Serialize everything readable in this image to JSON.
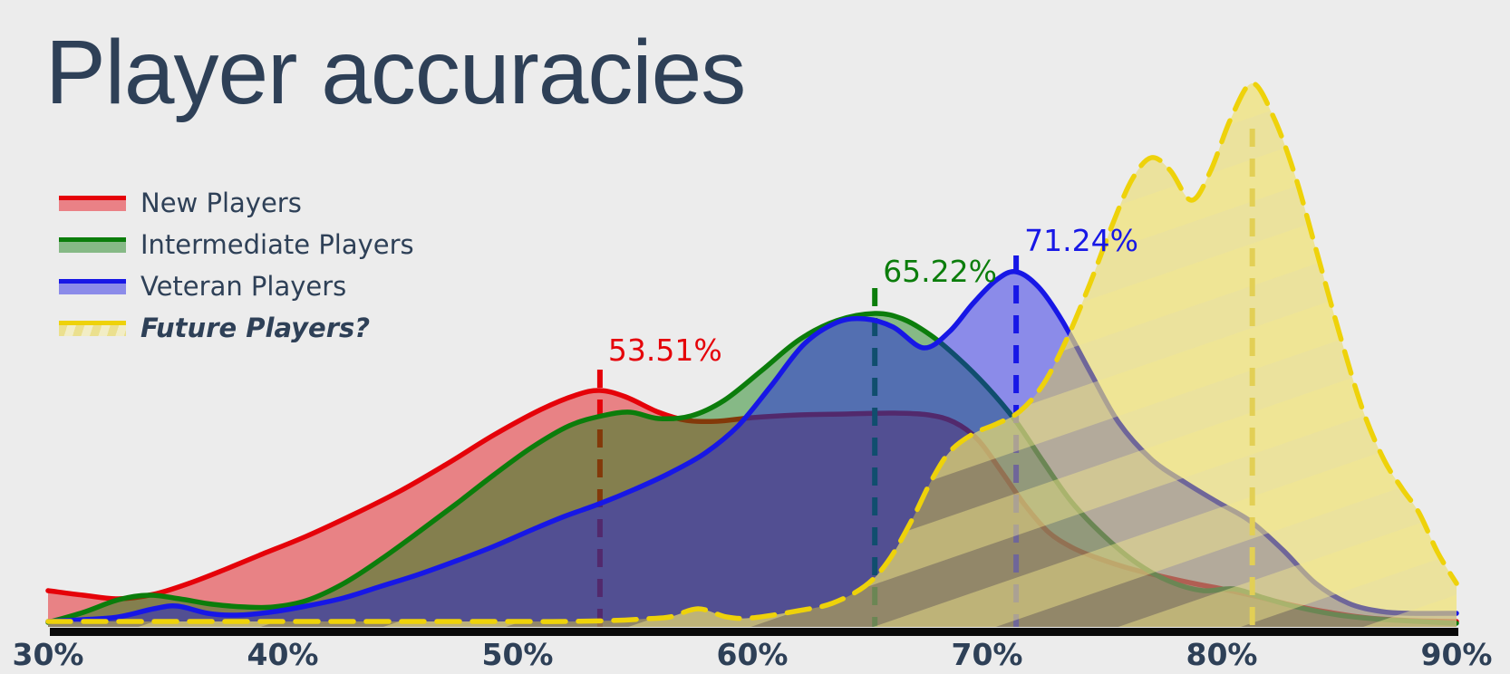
{
  "page": {
    "title": "Player accuracies",
    "background_color": "#ececec",
    "text_color": "#2e4057",
    "axis_bar_color": "#0a0a0a"
  },
  "legend": {
    "items": [
      {
        "label": "New Players",
        "stroke": "#e50209",
        "fill": "rgba(232,0,11,0.45)",
        "italic": false,
        "hatched": false
      },
      {
        "label": "Intermediate Players",
        "stroke": "#0b7d0b",
        "fill": "rgba(11,125,11,0.45)",
        "italic": false,
        "hatched": false
      },
      {
        "label": "Veteran Players",
        "stroke": "#1717e6",
        "fill": "rgba(23,23,230,0.45)",
        "italic": false,
        "hatched": false
      },
      {
        "label": "Future Players?",
        "stroke": "#eed20a",
        "fill": "rgba(234,211,48,0.42)",
        "italic": true,
        "hatched": true
      }
    ]
  },
  "chart_data": {
    "type": "area",
    "subtype": "kde-density-curves",
    "title": "Player accuracies",
    "xlabel": "",
    "ylabel": "",
    "x_unit": "%",
    "xlim": [
      30,
      90
    ],
    "x_ticks": [
      30,
      40,
      50,
      60,
      70,
      80,
      90
    ],
    "x_tick_labels": [
      "30%",
      "40%",
      "50%",
      "60%",
      "70%",
      "80%",
      "90%"
    ],
    "y_axis_shown": false,
    "grid": false,
    "legend_position": "upper-left",
    "y_units": "relative density (pixel height in 744px-tall render)",
    "series": [
      {
        "name": "New Players",
        "color": "#e50209",
        "fill_alpha": 0.45,
        "line_style": "solid",
        "hatch": "none",
        "mean_pct": 53.51,
        "mean_label": "53.51%",
        "mean_line_style": "dashed",
        "mean_line_color": "#e50209",
        "points": [
          [
            30,
            40
          ],
          [
            31.5,
            35
          ],
          [
            33,
            31
          ],
          [
            34.5,
            36
          ],
          [
            36,
            48
          ],
          [
            37.5,
            63
          ],
          [
            39,
            79
          ],
          [
            41,
            100
          ],
          [
            43,
            124
          ],
          [
            45,
            150
          ],
          [
            47,
            180
          ],
          [
            49,
            212
          ],
          [
            51,
            240
          ],
          [
            52.5,
            256
          ],
          [
            53.51,
            261
          ],
          [
            54.6,
            254
          ],
          [
            56,
            237
          ],
          [
            57.2,
            228
          ],
          [
            58.5,
            227
          ],
          [
            60,
            231
          ],
          [
            62,
            234
          ],
          [
            64,
            235
          ],
          [
            66,
            236
          ],
          [
            67.5,
            234
          ],
          [
            68.6,
            226
          ],
          [
            69.6,
            207
          ],
          [
            70.6,
            172
          ],
          [
            71.6,
            135
          ],
          [
            72.6,
            105
          ],
          [
            73.6,
            88
          ],
          [
            74.6,
            77
          ],
          [
            76,
            65
          ],
          [
            77.4,
            56
          ],
          [
            78.8,
            48
          ],
          [
            80,
            42
          ],
          [
            81.4,
            34
          ],
          [
            83,
            24
          ],
          [
            84.6,
            16
          ],
          [
            86.2,
            10
          ],
          [
            88,
            7
          ],
          [
            90,
            6
          ]
        ]
      },
      {
        "name": "Intermediate Players",
        "color": "#0b7d0b",
        "fill_alpha": 0.45,
        "line_style": "solid",
        "hatch": "none",
        "mean_pct": 65.22,
        "mean_label": "65.22%",
        "mean_line_style": "dashed",
        "mean_line_color": "#0b7d0b",
        "points": [
          [
            30,
            5
          ],
          [
            31.5,
            16
          ],
          [
            33,
            30
          ],
          [
            34.3,
            35
          ],
          [
            35.6,
            31
          ],
          [
            37,
            25
          ],
          [
            38.4,
            22
          ],
          [
            39.6,
            22
          ],
          [
            41,
            29
          ],
          [
            42.6,
            48
          ],
          [
            44.2,
            75
          ],
          [
            45.8,
            105
          ],
          [
            47.4,
            136
          ],
          [
            49,
            168
          ],
          [
            50.6,
            198
          ],
          [
            52.2,
            222
          ],
          [
            53.6,
            233
          ],
          [
            54.8,
            237
          ],
          [
            56,
            230
          ],
          [
            57.4,
            233
          ],
          [
            58.8,
            250
          ],
          [
            60.4,
            283
          ],
          [
            62,
            317
          ],
          [
            63.6,
            338
          ],
          [
            65.22,
            346
          ],
          [
            66.4,
            340
          ],
          [
            67.6,
            322
          ],
          [
            68.8,
            296
          ],
          [
            70,
            265
          ],
          [
            71.2,
            228
          ],
          [
            72.4,
            182
          ],
          [
            73.6,
            138
          ],
          [
            75,
            100
          ],
          [
            76.4,
            70
          ],
          [
            77.8,
            50
          ],
          [
            79.2,
            40
          ],
          [
            80.5,
            42
          ],
          [
            81.8,
            32
          ],
          [
            83.2,
            22
          ],
          [
            85,
            13
          ],
          [
            87,
            8
          ],
          [
            90,
            4
          ]
        ]
      },
      {
        "name": "Veteran Players",
        "color": "#1717e6",
        "fill_alpha": 0.45,
        "line_style": "solid",
        "hatch": "none",
        "mean_pct": 71.24,
        "mean_label": "71.24%",
        "mean_line_style": "dashed",
        "mean_line_color": "#1717e6",
        "points": [
          [
            30,
            6
          ],
          [
            31.5,
            8
          ],
          [
            33,
            11
          ],
          [
            34.5,
            20
          ],
          [
            35.5,
            23
          ],
          [
            36.8,
            15
          ],
          [
            38,
            13
          ],
          [
            39.4,
            16
          ],
          [
            41,
            23
          ],
          [
            42.6,
            32
          ],
          [
            44.2,
            45
          ],
          [
            45.8,
            58
          ],
          [
            47.4,
            73
          ],
          [
            49,
            89
          ],
          [
            50.6,
            107
          ],
          [
            52,
            122
          ],
          [
            53.5,
            136
          ],
          [
            55,
            152
          ],
          [
            56.5,
            170
          ],
          [
            58,
            192
          ],
          [
            59.4,
            222
          ],
          [
            60.8,
            266
          ],
          [
            62.2,
            312
          ],
          [
            63.6,
            336
          ],
          [
            64.8,
            340
          ],
          [
            66,
            331
          ],
          [
            67.3,
            308
          ],
          [
            68.4,
            326
          ],
          [
            69.4,
            357
          ],
          [
            70.4,
            383
          ],
          [
            71.24,
            392
          ],
          [
            72.2,
            375
          ],
          [
            73.2,
            338
          ],
          [
            74.4,
            281
          ],
          [
            75.6,
            226
          ],
          [
            77,
            185
          ],
          [
            78.4,
            160
          ],
          [
            79.8,
            138
          ],
          [
            81.2,
            117
          ],
          [
            82.6,
            85
          ],
          [
            84,
            48
          ],
          [
            85.4,
            26
          ],
          [
            86.8,
            17
          ],
          [
            88,
            15
          ],
          [
            90,
            15
          ]
        ]
      },
      {
        "name": "Future Players?",
        "color": "#eed20a",
        "fill_alpha": 0.42,
        "line_style": "dashed",
        "hatch": "diagonal-stripes",
        "mean_pct": 81.3,
        "mean_label": "",
        "mean_line_style": "dashed",
        "mean_line_color": "#e2cf55",
        "points": [
          [
            30,
            6
          ],
          [
            35,
            6
          ],
          [
            40,
            6
          ],
          [
            45,
            6
          ],
          [
            50,
            6
          ],
          [
            52,
            6
          ],
          [
            54,
            7
          ],
          [
            55.5,
            9
          ],
          [
            56.5,
            11
          ],
          [
            57.7,
            20
          ],
          [
            58.9,
            11
          ],
          [
            60,
            10
          ],
          [
            62,
            18
          ],
          [
            63.4,
            26
          ],
          [
            64.8,
            45
          ],
          [
            65.8,
            73
          ],
          [
            66.8,
            118
          ],
          [
            67.6,
            160
          ],
          [
            68.4,
            193
          ],
          [
            69.4,
            213
          ],
          [
            70.4,
            224
          ],
          [
            71.4,
            238
          ],
          [
            72.4,
            268
          ],
          [
            73.4,
            318
          ],
          [
            74.4,
            380
          ],
          [
            75.4,
            448
          ],
          [
            76.2,
            495
          ],
          [
            77,
            518
          ],
          [
            77.8,
            504
          ],
          [
            78.7,
            471
          ],
          [
            79.5,
            502
          ],
          [
            80.4,
            562
          ],
          [
            81.3,
            600
          ],
          [
            82.2,
            563
          ],
          [
            83.1,
            500
          ],
          [
            84,
            418
          ],
          [
            85,
            325
          ],
          [
            86,
            240
          ],
          [
            86.9,
            185
          ],
          [
            87.7,
            152
          ],
          [
            88.4,
            126
          ],
          [
            89.2,
            82
          ],
          [
            90,
            48
          ]
        ]
      }
    ]
  }
}
